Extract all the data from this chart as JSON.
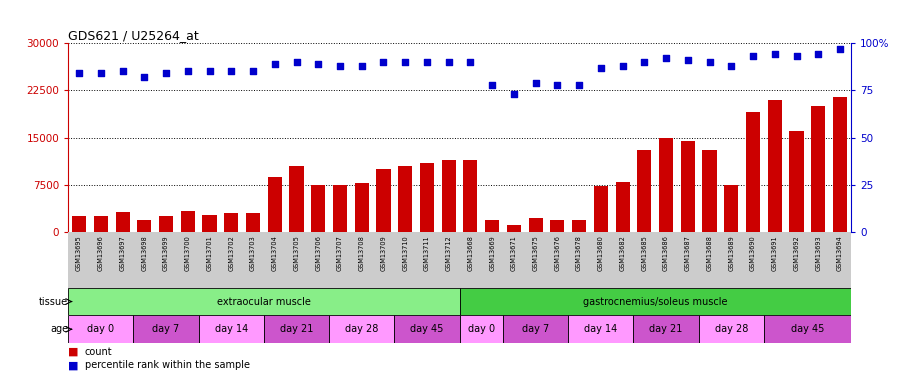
{
  "title": "GDS621 / U25264_at",
  "samples": [
    "GSM13695",
    "GSM13696",
    "GSM13697",
    "GSM13698",
    "GSM13699",
    "GSM13700",
    "GSM13701",
    "GSM13702",
    "GSM13703",
    "GSM13704",
    "GSM13705",
    "GSM13706",
    "GSM13707",
    "GSM13708",
    "GSM13709",
    "GSM13710",
    "GSM13711",
    "GSM13712",
    "GSM13668",
    "GSM13669",
    "GSM13671",
    "GSM13675",
    "GSM13676",
    "GSM13678",
    "GSM13680",
    "GSM13682",
    "GSM13685",
    "GSM13686",
    "GSM13687",
    "GSM13688",
    "GSM13689",
    "GSM13690",
    "GSM13691",
    "GSM13692",
    "GSM13693",
    "GSM13694"
  ],
  "counts": [
    2600,
    2500,
    3200,
    1900,
    2600,
    3300,
    2800,
    3000,
    3100,
    8800,
    10500,
    7500,
    7500,
    7800,
    10000,
    10500,
    11000,
    11500,
    11500,
    2000,
    1200,
    2200,
    1900,
    1900,
    7300,
    8000,
    13000,
    15000,
    14500,
    13000,
    7500,
    19000,
    21000,
    16000,
    20000,
    21500
  ],
  "percentile": [
    84,
    84,
    85,
    82,
    84,
    85,
    85,
    85,
    85,
    89,
    90,
    89,
    88,
    88,
    90,
    90,
    90,
    90,
    90,
    78,
    73,
    79,
    78,
    78,
    87,
    88,
    90,
    92,
    91,
    90,
    88,
    93,
    94,
    93,
    94,
    97
  ],
  "ylim_left": [
    0,
    30000
  ],
  "ylim_right": [
    0,
    100
  ],
  "yticks_left": [
    0,
    7500,
    15000,
    22500,
    30000
  ],
  "yticks_right": [
    0,
    25,
    50,
    75,
    100
  ],
  "bar_color": "#cc0000",
  "dot_color": "#0000cc",
  "tissue_groups": [
    {
      "label": "extraocular muscle",
      "start": 0,
      "end": 18,
      "color": "#88ee88"
    },
    {
      "label": "gastrocnemius/soleus muscle",
      "start": 18,
      "end": 36,
      "color": "#44cc44"
    }
  ],
  "age_groups": [
    {
      "label": "day 0",
      "start": 0,
      "end": 3,
      "color": "#ff99ff"
    },
    {
      "label": "day 7",
      "start": 3,
      "end": 6,
      "color": "#cc55cc"
    },
    {
      "label": "day 14",
      "start": 6,
      "end": 9,
      "color": "#ff99ff"
    },
    {
      "label": "day 21",
      "start": 9,
      "end": 12,
      "color": "#cc55cc"
    },
    {
      "label": "day 28",
      "start": 12,
      "end": 15,
      "color": "#ff99ff"
    },
    {
      "label": "day 45",
      "start": 15,
      "end": 18,
      "color": "#cc55cc"
    },
    {
      "label": "day 0",
      "start": 18,
      "end": 20,
      "color": "#ff99ff"
    },
    {
      "label": "day 7",
      "start": 20,
      "end": 23,
      "color": "#cc55cc"
    },
    {
      "label": "day 14",
      "start": 23,
      "end": 26,
      "color": "#ff99ff"
    },
    {
      "label": "day 21",
      "start": 26,
      "end": 29,
      "color": "#cc55cc"
    },
    {
      "label": "day 28",
      "start": 29,
      "end": 32,
      "color": "#ff99ff"
    },
    {
      "label": "day 45",
      "start": 32,
      "end": 36,
      "color": "#cc55cc"
    }
  ],
  "bg_color": "#ffffff",
  "xtick_bg": "#cccccc",
  "main_bg": "#ffffff"
}
